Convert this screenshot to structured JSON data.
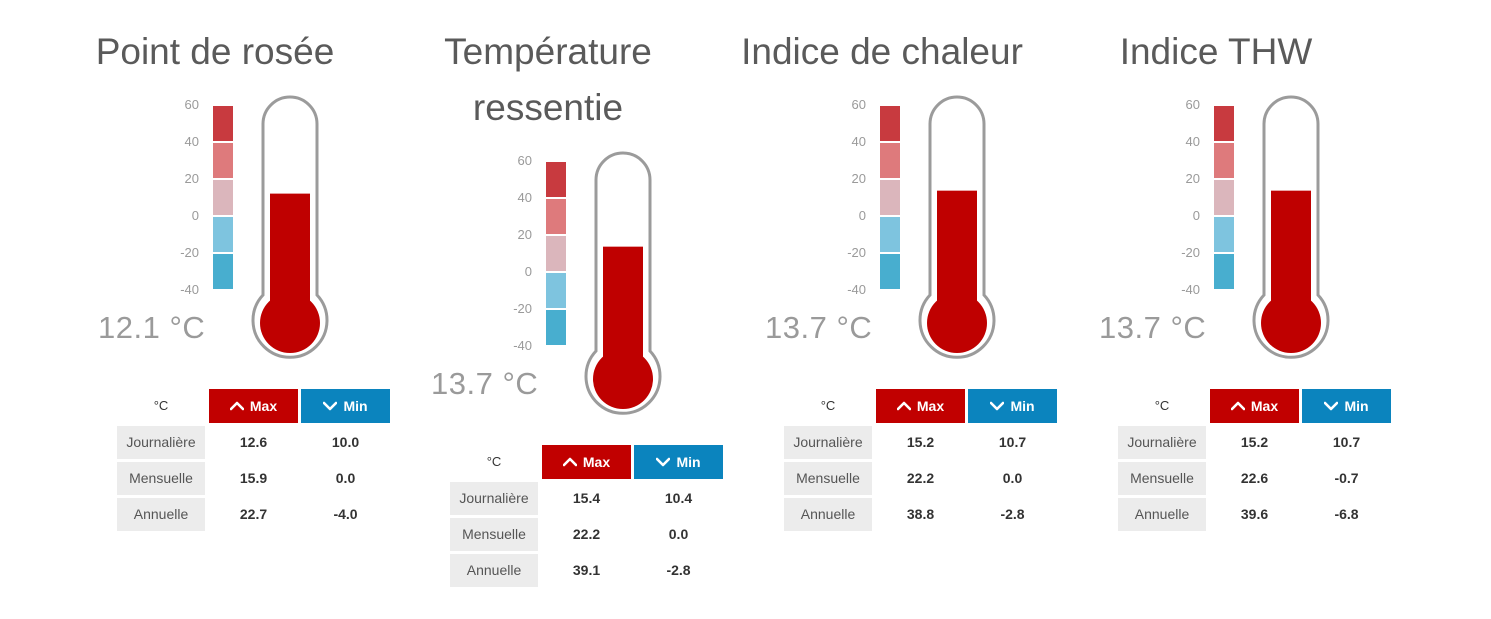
{
  "colors": {
    "mercury": "#bf0000",
    "tube_outline": "#9b9b9b",
    "max_header": "#c10000",
    "min_header": "#0b84be",
    "scale_bands": [
      "#c83a3f",
      "#de7a7c",
      "#dbb6bc",
      "#7ec4df",
      "#48aecf"
    ]
  },
  "gauge_range": {
    "min": -40,
    "max": 60
  },
  "scale_ticks": [
    "60",
    "40",
    "20",
    "0",
    "-20",
    "-40"
  ],
  "table_header": {
    "unit": "°C",
    "max_label": "Max",
    "min_label": "Min"
  },
  "row_labels": [
    "Journalière",
    "Mensuelle",
    "Annuelle"
  ],
  "panels": [
    {
      "title_lines": [
        "Point de rosée"
      ],
      "value": 12.1,
      "reading": "12.1 °C",
      "rows": [
        {
          "max": "12.6",
          "min": "10.0"
        },
        {
          "max": "15.9",
          "min": "0.0"
        },
        {
          "max": "22.7",
          "min": "-4.0"
        }
      ]
    },
    {
      "title_lines": [
        "Température",
        "ressentie"
      ],
      "value": 13.7,
      "reading": "13.7 °C",
      "rows": [
        {
          "max": "15.4",
          "min": "10.4"
        },
        {
          "max": "22.2",
          "min": "0.0"
        },
        {
          "max": "39.1",
          "min": "-2.8"
        }
      ]
    },
    {
      "title_lines": [
        "Indice de chaleur"
      ],
      "value": 13.7,
      "reading": "13.7 °C",
      "rows": [
        {
          "max": "15.2",
          "min": "10.7"
        },
        {
          "max": "22.2",
          "min": "0.0"
        },
        {
          "max": "38.8",
          "min": "-2.8"
        }
      ]
    },
    {
      "title_lines": [
        "Indice THW"
      ],
      "value": 13.7,
      "reading": "13.7 °C",
      "rows": [
        {
          "max": "15.2",
          "min": "10.7"
        },
        {
          "max": "22.6",
          "min": "-0.7"
        },
        {
          "max": "39.6",
          "min": "-6.8"
        }
      ]
    }
  ]
}
